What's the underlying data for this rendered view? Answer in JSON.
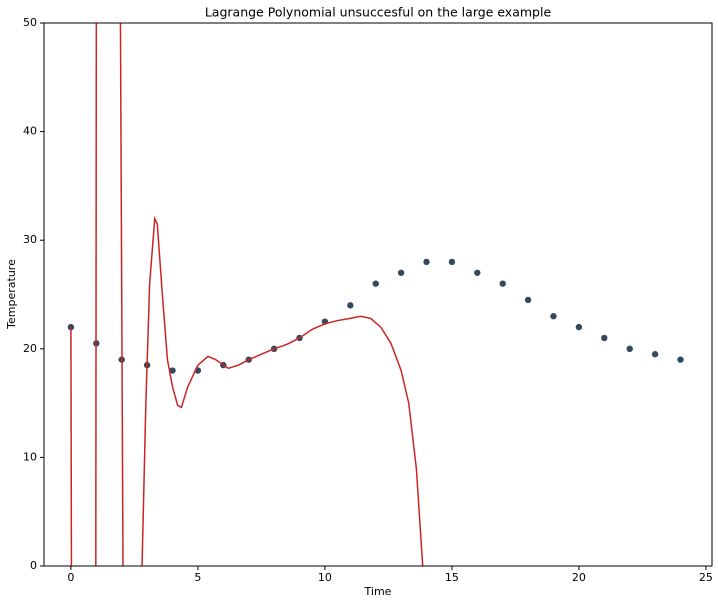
{
  "chart_data": {
    "type": "scatter",
    "title": "Lagrange Polynomial unsuccesful on the large example",
    "xlabel": "Time",
    "ylabel": "Temperature",
    "xlim": [
      -1.06,
      25.24
    ],
    "ylim": [
      0,
      50
    ],
    "xticks": [
      0,
      5,
      10,
      15,
      20,
      25
    ],
    "yticks": [
      0,
      10,
      20,
      30,
      40,
      50
    ],
    "series": [
      {
        "type": "scatter",
        "color": "#34495e",
        "x": [
          0,
          1,
          2,
          3,
          4,
          5,
          6,
          7,
          8,
          9,
          10,
          11,
          12,
          13,
          14,
          15,
          16,
          17,
          18,
          19,
          20,
          21,
          22,
          23,
          24
        ],
        "values": [
          22,
          20.5,
          19,
          18.5,
          18,
          18,
          18.5,
          19,
          20,
          21,
          22.5,
          24,
          26,
          27,
          28,
          28,
          27,
          26,
          24.5,
          23,
          22,
          21,
          20,
          19.5,
          19
        ]
      },
      {
        "type": "line",
        "color": "#cc2424",
        "x": [
          0,
          0.02,
          null,
          0.98,
          1.0,
          null,
          1.95,
          2.05,
          null,
          2.8,
          2.95,
          3.1,
          3.3,
          3.4,
          3.6,
          3.8,
          4.0,
          4.2,
          4.35,
          4.6,
          5,
          5.4,
          5.7,
          6.2,
          6.6,
          7,
          7.5,
          8,
          8.5,
          9,
          9.5,
          10,
          10.5,
          11,
          11.4,
          11.8,
          12.2,
          12.6,
          13,
          13.3,
          13.6,
          13.85
        ],
        "values": [
          22,
          0,
          null,
          0,
          50,
          null,
          50,
          0,
          null,
          0,
          15,
          26,
          32,
          31.5,
          25,
          19,
          16.5,
          14.8,
          14.6,
          16.5,
          18.5,
          19.3,
          19,
          18.2,
          18.5,
          19,
          19.5,
          20,
          20.4,
          21,
          21.8,
          22.3,
          22.6,
          22.8,
          23,
          22.8,
          22,
          20.5,
          18,
          15,
          9,
          0
        ]
      }
    ]
  }
}
